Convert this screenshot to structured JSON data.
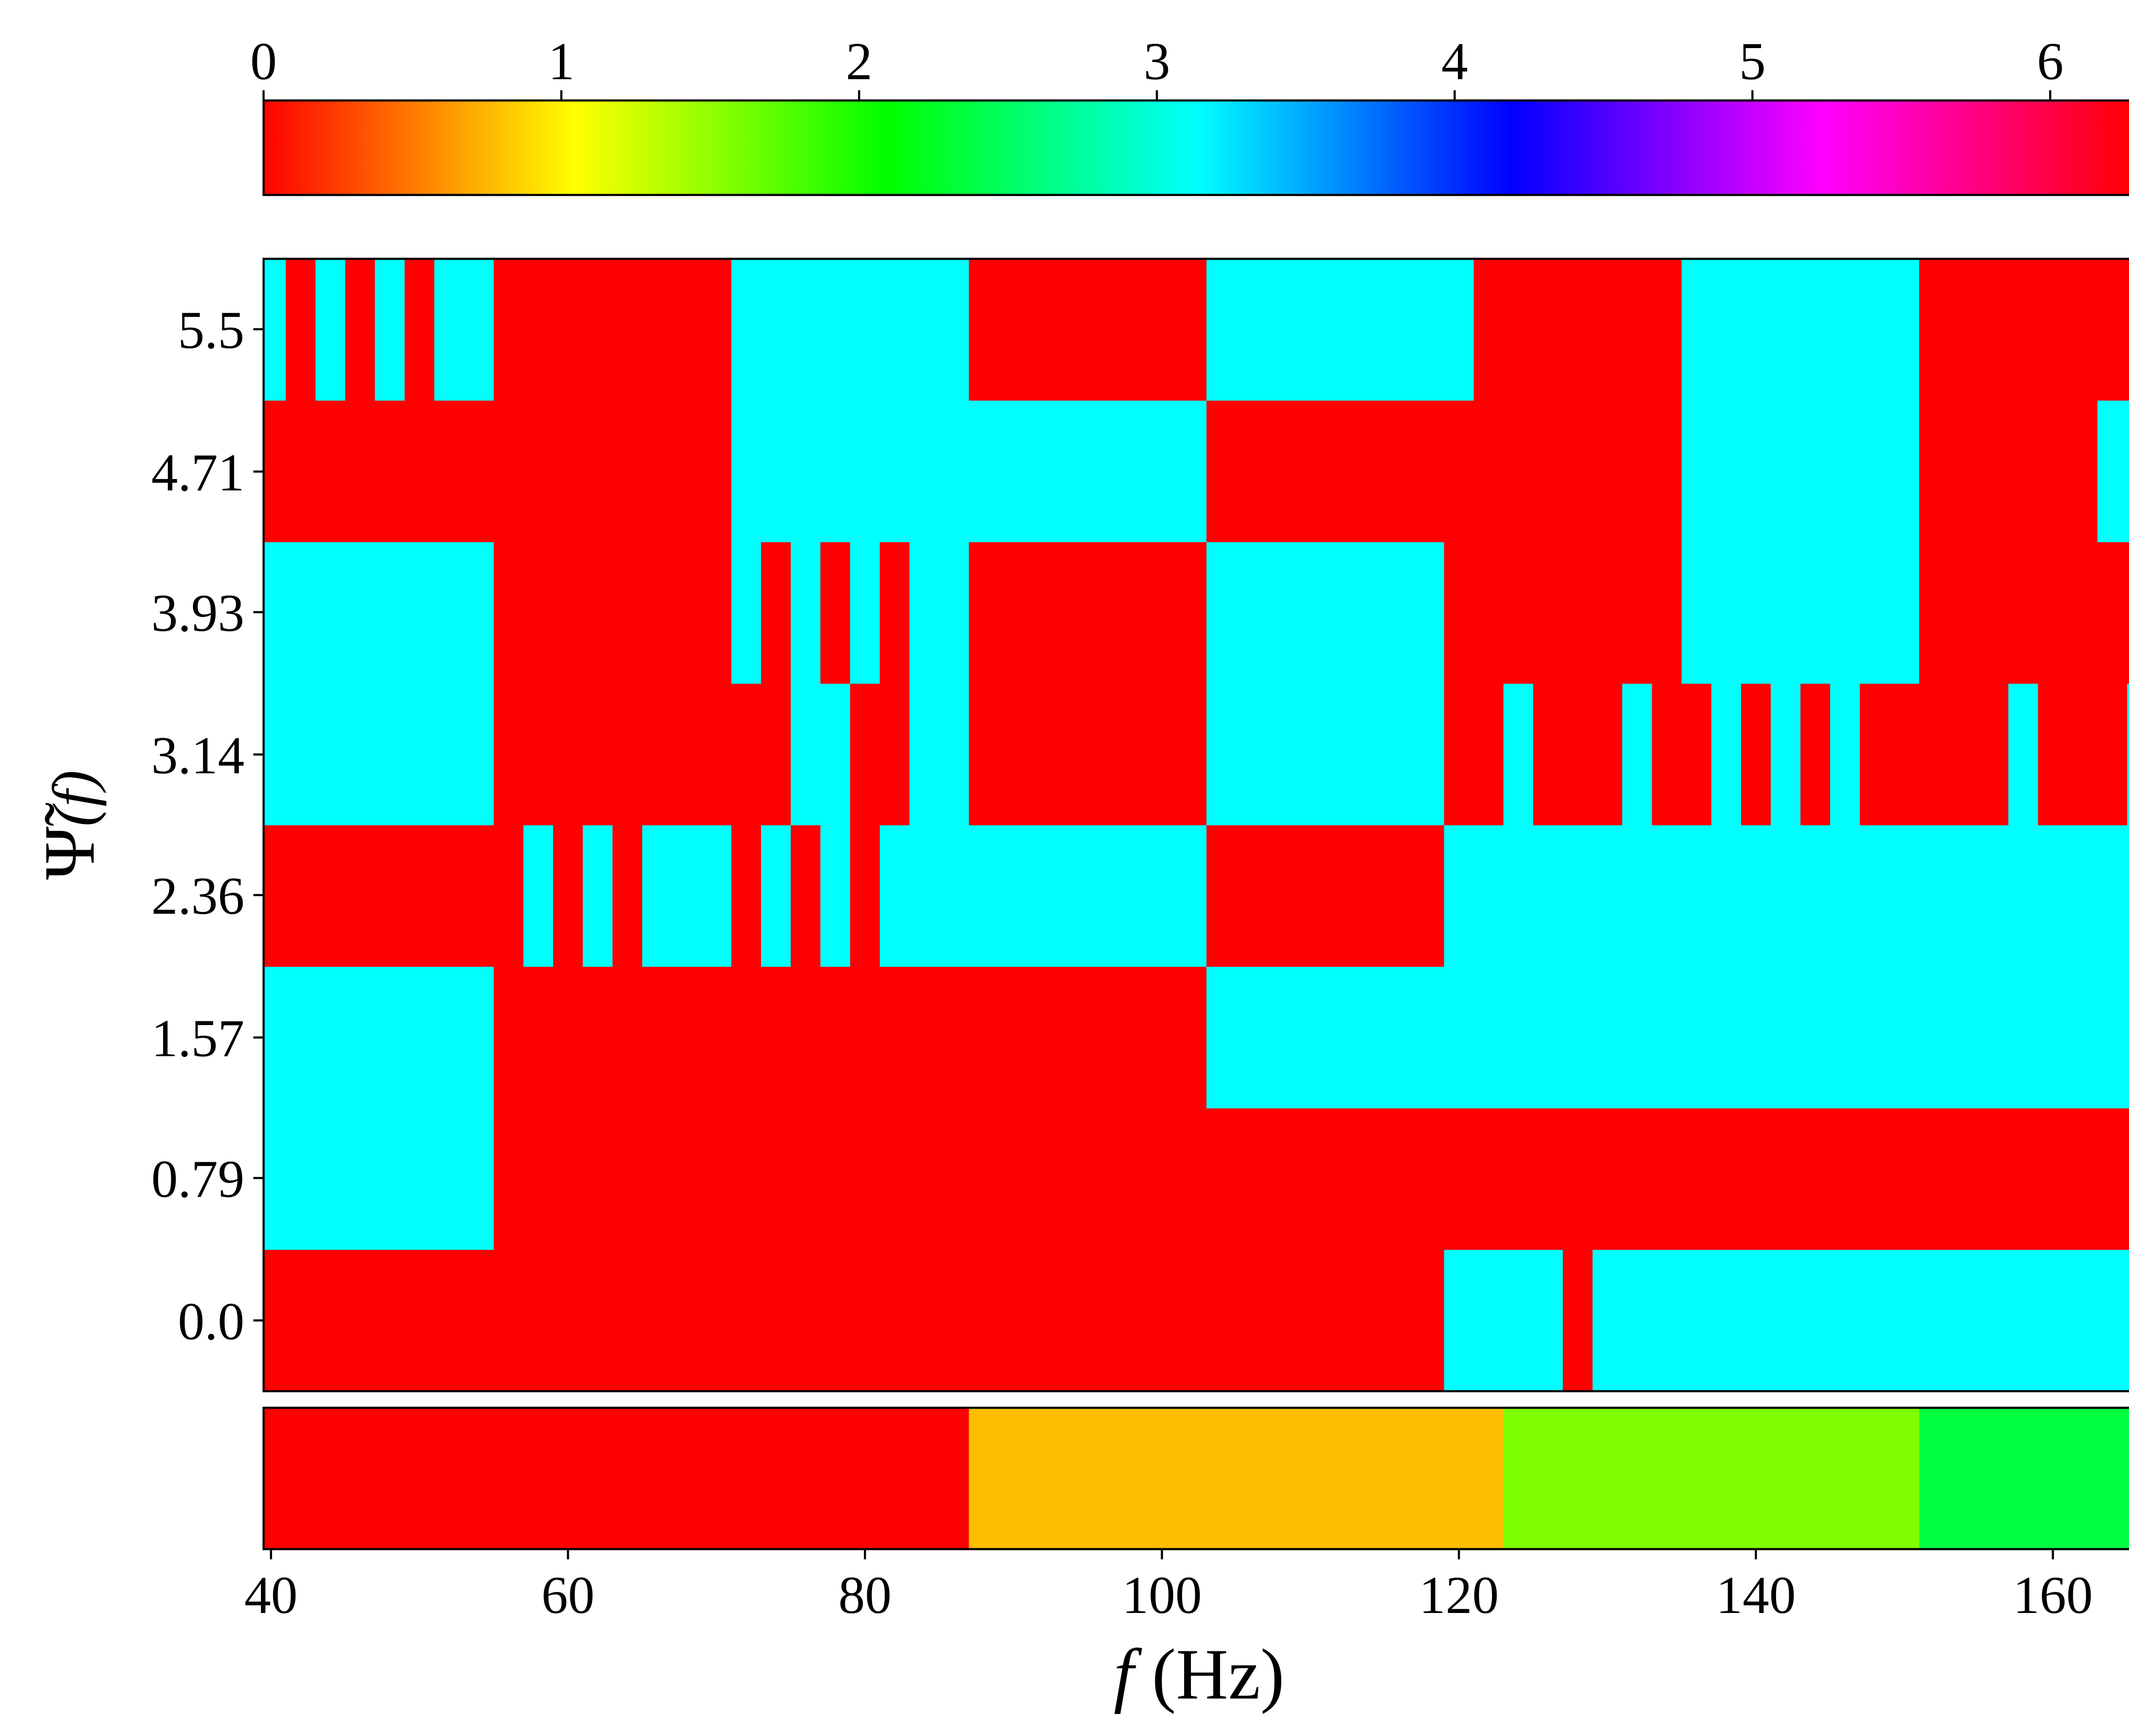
{
  "chart_data": {
    "type": "heatmap",
    "colormap": "hsv",
    "colors": {
      "red": "#ff0000",
      "cyan": "#00ffff",
      "orange": "#ffbf00",
      "lime": "#80ff00",
      "green": "#00ff40"
    },
    "colorbar": {
      "range": [
        0,
        6.2832
      ],
      "tick_values": [
        0,
        1,
        2,
        3,
        4,
        5,
        6
      ],
      "tick_labels": [
        "0",
        "1",
        "2",
        "3",
        "4",
        "5",
        "6"
      ]
    },
    "xlabel_italic": "f",
    "xlabel_rest": " (Hz)",
    "ylabel_psi": "Ψ̃",
    "ylabel_rest": "(f)",
    "xlim": [
      39.5,
      165.5
    ],
    "x_tick_values": [
      40,
      60,
      80,
      100,
      120,
      140,
      160
    ],
    "x_tick_labels": [
      "40",
      "60",
      "80",
      "100",
      "120",
      "140",
      "160"
    ],
    "ylim": [
      -0.3927,
      5.8905
    ],
    "y_tick_values": [
      0.0,
      0.79,
      1.57,
      2.36,
      3.14,
      3.93,
      4.71,
      5.5
    ],
    "y_tick_labels": [
      "0.0",
      "0.79",
      "1.57",
      "2.36",
      "3.14",
      "3.93",
      "4.71",
      "5.5"
    ],
    "row_values": [
      0.0,
      0.79,
      1.57,
      2.36,
      3.14,
      3.93,
      4.71,
      5.5
    ],
    "cell_segments": [
      [
        [
          39.5,
          119,
          "red"
        ],
        [
          119,
          127,
          "cyan"
        ],
        [
          127,
          129,
          "red"
        ],
        [
          129,
          165.5,
          "cyan"
        ]
      ],
      [
        [
          39.5,
          55,
          "cyan"
        ],
        [
          55,
          165.5,
          "red"
        ]
      ],
      [
        [
          39.5,
          55,
          "cyan"
        ],
        [
          55,
          103,
          "red"
        ],
        [
          103,
          165.5,
          "cyan"
        ]
      ],
      [
        [
          39.5,
          57,
          "red"
        ],
        [
          57,
          59,
          "cyan"
        ],
        [
          59,
          61,
          "red"
        ],
        [
          61,
          63,
          "cyan"
        ],
        [
          63,
          65,
          "red"
        ],
        [
          65,
          71,
          "cyan"
        ],
        [
          71,
          73,
          "red"
        ],
        [
          73,
          75,
          "cyan"
        ],
        [
          75,
          77,
          "red"
        ],
        [
          77,
          79,
          "cyan"
        ],
        [
          79,
          81,
          "red"
        ],
        [
          81,
          103,
          "cyan"
        ],
        [
          103,
          119,
          "red"
        ],
        [
          119,
          165.5,
          "cyan"
        ]
      ],
      [
        [
          39.5,
          55,
          "cyan"
        ],
        [
          55,
          75,
          "red"
        ],
        [
          75,
          79,
          "cyan"
        ],
        [
          79,
          83,
          "red"
        ],
        [
          83,
          87,
          "cyan"
        ],
        [
          87,
          103,
          "red"
        ],
        [
          103,
          119,
          "cyan"
        ],
        [
          119,
          123,
          "red"
        ],
        [
          123,
          125,
          "cyan"
        ],
        [
          125,
          131,
          "red"
        ],
        [
          131,
          133,
          "cyan"
        ],
        [
          133,
          137,
          "red"
        ],
        [
          137,
          139,
          "cyan"
        ],
        [
          139,
          141,
          "red"
        ],
        [
          141,
          143,
          "cyan"
        ],
        [
          143,
          145,
          "red"
        ],
        [
          145,
          147,
          "cyan"
        ],
        [
          147,
          157,
          "red"
        ],
        [
          157,
          159,
          "cyan"
        ],
        [
          159,
          165,
          "red"
        ],
        [
          165,
          165.5,
          "cyan"
        ]
      ],
      [
        [
          39.5,
          55,
          "cyan"
        ],
        [
          55,
          71,
          "red"
        ],
        [
          71,
          73,
          "cyan"
        ],
        [
          73,
          75,
          "red"
        ],
        [
          75,
          77,
          "cyan"
        ],
        [
          77,
          79,
          "red"
        ],
        [
          79,
          81,
          "cyan"
        ],
        [
          81,
          83,
          "red"
        ],
        [
          83,
          87,
          "cyan"
        ],
        [
          87,
          103,
          "red"
        ],
        [
          103,
          119,
          "cyan"
        ],
        [
          119,
          135,
          "red"
        ],
        [
          135,
          151,
          "cyan"
        ],
        [
          151,
          165.5,
          "red"
        ]
      ],
      [
        [
          39.5,
          71,
          "red"
        ],
        [
          71,
          103,
          "cyan"
        ],
        [
          103,
          135,
          "red"
        ],
        [
          135,
          151,
          "cyan"
        ],
        [
          151,
          163,
          "red"
        ],
        [
          163,
          165.5,
          "cyan"
        ]
      ],
      [
        [
          39.5,
          41,
          "cyan"
        ],
        [
          41,
          43,
          "red"
        ],
        [
          43,
          45,
          "cyan"
        ],
        [
          45,
          47,
          "red"
        ],
        [
          47,
          49,
          "cyan"
        ],
        [
          49,
          51,
          "red"
        ],
        [
          51,
          55,
          "cyan"
        ],
        [
          55,
          71,
          "red"
        ],
        [
          71,
          87,
          "cyan"
        ],
        [
          87,
          103,
          "red"
        ],
        [
          103,
          121,
          "cyan"
        ],
        [
          121,
          135,
          "red"
        ],
        [
          135,
          151,
          "cyan"
        ],
        [
          151,
          165.5,
          "red"
        ]
      ]
    ],
    "band_segments": [
      [
        39.5,
        87,
        "red"
      ],
      [
        87,
        123,
        "orange"
      ],
      [
        123,
        151,
        "lime"
      ],
      [
        151,
        165.5,
        "green"
      ]
    ]
  }
}
